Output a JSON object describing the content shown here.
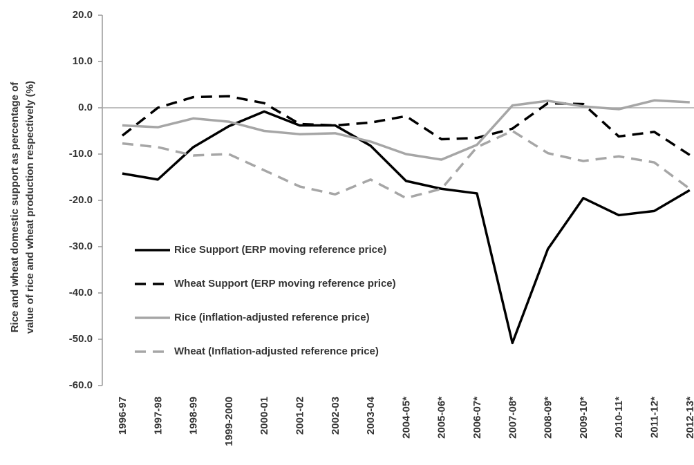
{
  "chart_data": {
    "type": "line",
    "ylabel": [
      "Rice and wheat domestic support as percentage of",
      "value of rice and wheat production respectively (%)"
    ],
    "categories": [
      "1996-97",
      "1997-98",
      "1998-99",
      "1999-2000",
      "2000-01",
      "2001-02",
      "2002-03",
      "2003-04",
      "2004-05*",
      "2005-06*",
      "2006-07*",
      "2007-08*",
      "2008-09*",
      "2009-10*",
      "2010-11*",
      "2011-12*",
      "2012-13*"
    ],
    "series": [
      {
        "name": "Rice Support (ERP moving reference price)",
        "color": "#000000",
        "dash": false,
        "values": [
          -14.2,
          -15.5,
          -8.5,
          -4,
          -0.8,
          -3.8,
          -3.8,
          -8.2,
          -15.8,
          -17.5,
          -18.5,
          -50.8,
          -30.5,
          -19.5,
          -23.2,
          -22.3,
          -17.8
        ]
      },
      {
        "name": "Wheat Support (ERP moving reference price)",
        "color": "#000000",
        "dash": true,
        "values": [
          -6,
          0,
          2.3,
          2.5,
          1,
          -3.5,
          -3.8,
          -3.2,
          -1.8,
          -6.8,
          -6.5,
          -4.5,
          1,
          0.8,
          -6.2,
          -5.2,
          -10.2
        ]
      },
      {
        "name": "Rice (inflation-adjusted reference price)",
        "color": "#a6a6a6",
        "dash": false,
        "values": [
          -3.8,
          -4.2,
          -2.3,
          -3,
          -5,
          -5.7,
          -5.5,
          -7.3,
          -10,
          -11.2,
          -8,
          0.5,
          1.5,
          0.3,
          -0.3,
          1.6,
          1.2
        ]
      },
      {
        "name": "Wheat (Inflation-adjusted reference price)",
        "color": "#a6a6a6",
        "dash": true,
        "values": [
          -7.7,
          -8.5,
          -10.3,
          -10,
          -13.5,
          -17,
          -18.7,
          -15.5,
          -19.5,
          -17.5,
          -8.5,
          -5,
          -9.8,
          -11.5,
          -10.5,
          -11.8,
          -17.5
        ]
      }
    ],
    "ylim": [
      -60,
      20
    ],
    "yticks": [
      {
        "value": -60,
        "label": "-60.0"
      },
      {
        "value": -50,
        "label": "-50.0"
      },
      {
        "value": -40,
        "label": "-40.0"
      },
      {
        "value": -30,
        "label": "-30.0"
      },
      {
        "value": -20,
        "label": "-20.0"
      },
      {
        "value": -10,
        "label": "-10.0"
      },
      {
        "value": 0,
        "label": "0.0"
      },
      {
        "value": 10,
        "label": "10.0"
      },
      {
        "value": 20,
        "label": "20.0"
      }
    ],
    "grid": false
  }
}
